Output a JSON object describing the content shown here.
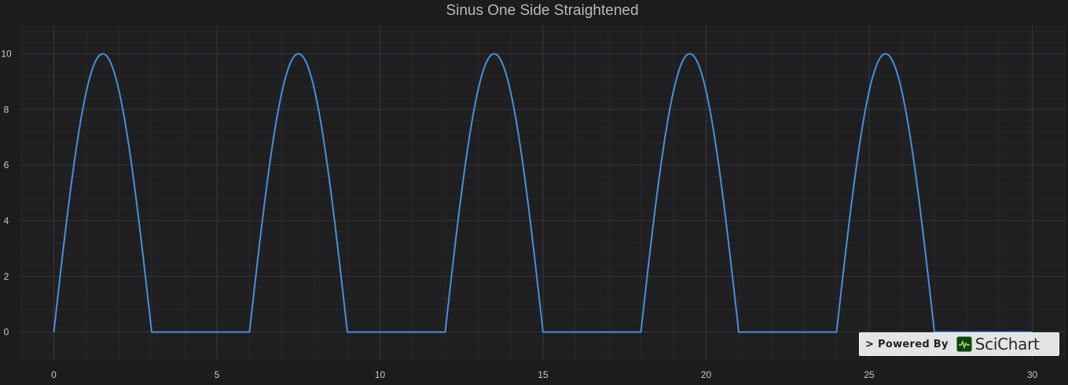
{
  "chart_data": {
    "type": "line",
    "title": "Sinus One Side Straightened",
    "xlabel": "",
    "ylabel": "",
    "xlim": [
      -1,
      31
    ],
    "ylim": [
      -1,
      11
    ],
    "x_ticks": [
      0,
      5,
      10,
      15,
      20,
      25,
      30
    ],
    "y_ticks": [
      0,
      2,
      4,
      6,
      8,
      10
    ],
    "grid": true,
    "series": [
      {
        "color": "#4a8fd8",
        "function": "max(0, 10*sin(pi*x/3))",
        "x_start": 0,
        "x_end": 30,
        "x_step": 0.05
      }
    ]
  },
  "badge": {
    "powered_by": "> Powered By",
    "brand": "SciChart"
  },
  "colors": {
    "background": "#1c1c1e",
    "plot_background": "#1f1f21",
    "grid_major": "#38383b",
    "grid_minor": "#28282a",
    "tick_label": "#c8c8c8",
    "title": "#b8b8b8",
    "line": "#4a8fd8"
  }
}
